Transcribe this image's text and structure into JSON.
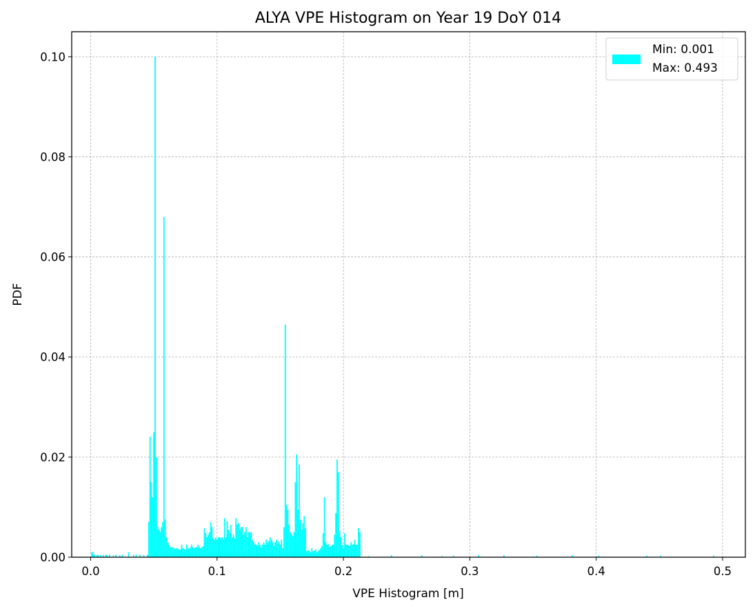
{
  "chart_data": {
    "type": "bar",
    "title": "ALYA VPE Histogram on Year 19 DoY 014",
    "xlabel": "VPE Histogram [m]",
    "ylabel": "PDF",
    "xlim": [
      -0.015,
      0.518
    ],
    "ylim": [
      0,
      0.105
    ],
    "xticks": [
      0.0,
      0.1,
      0.2,
      0.3,
      0.4,
      0.5
    ],
    "xtick_labels": [
      "0.0",
      "0.1",
      "0.2",
      "0.3",
      "0.4",
      "0.5"
    ],
    "yticks": [
      0.0,
      0.02,
      0.04,
      0.06,
      0.08,
      0.1
    ],
    "ytick_labels": [
      "0.00",
      "0.02",
      "0.04",
      "0.06",
      "0.08",
      "0.10"
    ],
    "grid": true,
    "legend_position": "top-right",
    "legend": [
      "Min: 0.001",
      "Max: 0.493"
    ],
    "bar_color": "#00ffff",
    "bin_width": 0.001,
    "x": [
      0.001,
      0.002,
      0.003,
      0.005,
      0.006,
      0.008,
      0.01,
      0.012,
      0.013,
      0.015,
      0.018,
      0.02,
      0.023,
      0.025,
      0.03,
      0.034,
      0.036,
      0.039,
      0.042,
      0.045,
      0.046,
      0.047,
      0.048,
      0.049,
      0.05,
      0.051,
      0.052,
      0.053,
      0.054,
      0.055,
      0.056,
      0.057,
      0.058,
      0.059,
      0.06,
      0.061,
      0.062,
      0.063,
      0.064,
      0.065,
      0.066,
      0.067,
      0.068,
      0.069,
      0.07,
      0.071,
      0.072,
      0.073,
      0.074,
      0.075,
      0.076,
      0.077,
      0.078,
      0.079,
      0.08,
      0.081,
      0.082,
      0.083,
      0.084,
      0.085,
      0.086,
      0.087,
      0.088,
      0.089,
      0.09,
      0.091,
      0.092,
      0.093,
      0.094,
      0.095,
      0.096,
      0.097,
      0.098,
      0.099,
      0.1,
      0.101,
      0.102,
      0.103,
      0.104,
      0.105,
      0.106,
      0.107,
      0.108,
      0.109,
      0.11,
      0.111,
      0.112,
      0.113,
      0.114,
      0.115,
      0.116,
      0.117,
      0.118,
      0.119,
      0.12,
      0.121,
      0.122,
      0.123,
      0.124,
      0.125,
      0.126,
      0.127,
      0.128,
      0.129,
      0.13,
      0.131,
      0.132,
      0.133,
      0.134,
      0.135,
      0.136,
      0.137,
      0.138,
      0.139,
      0.14,
      0.141,
      0.142,
      0.143,
      0.144,
      0.145,
      0.146,
      0.147,
      0.148,
      0.149,
      0.15,
      0.151,
      0.152,
      0.153,
      0.154,
      0.155,
      0.156,
      0.157,
      0.158,
      0.159,
      0.16,
      0.161,
      0.162,
      0.163,
      0.164,
      0.165,
      0.166,
      0.167,
      0.168,
      0.169,
      0.17,
      0.171,
      0.172,
      0.173,
      0.174,
      0.175,
      0.176,
      0.177,
      0.178,
      0.179,
      0.18,
      0.181,
      0.182,
      0.183,
      0.184,
      0.185,
      0.186,
      0.187,
      0.188,
      0.189,
      0.19,
      0.191,
      0.192,
      0.193,
      0.194,
      0.195,
      0.196,
      0.197,
      0.198,
      0.199,
      0.2,
      0.201,
      0.202,
      0.203,
      0.204,
      0.205,
      0.206,
      0.207,
      0.208,
      0.209,
      0.21,
      0.211,
      0.212,
      0.213,
      0.22,
      0.238,
      0.262,
      0.278,
      0.287,
      0.307,
      0.327,
      0.353,
      0.381,
      0.402,
      0.44,
      0.451,
      0.493
    ],
    "values": [
      0.0011,
      0.0009,
      0.0005,
      0.0005,
      0.0004,
      0.0004,
      0.0005,
      0.0005,
      0.0004,
      0.0005,
      0.0004,
      0.0005,
      0.0004,
      0.0005,
      0.001,
      0.0005,
      0.0005,
      0.0005,
      0.0004,
      0.0005,
      0.0071,
      0.0241,
      0.015,
      0.012,
      0.025,
      0.1,
      0.02,
      0.006,
      0.0055,
      0.005,
      0.006,
      0.007,
      0.068,
      0.0075,
      0.004,
      0.003,
      0.0025,
      0.002,
      0.002,
      0.002,
      0.0018,
      0.0015,
      0.0018,
      0.0017,
      0.0016,
      0.0015,
      0.0025,
      0.0018,
      0.0016,
      0.0015,
      0.0025,
      0.0018,
      0.0017,
      0.002,
      0.0025,
      0.002,
      0.0018,
      0.002,
      0.002,
      0.0025,
      0.002,
      0.0018,
      0.002,
      0.0022,
      0.0058,
      0.0048,
      0.004,
      0.0045,
      0.005,
      0.007,
      0.006,
      0.0038,
      0.0035,
      0.004,
      0.0035,
      0.004,
      0.004,
      0.0038,
      0.004,
      0.0035,
      0.0078,
      0.004,
      0.0072,
      0.0055,
      0.0048,
      0.0065,
      0.004,
      0.0045,
      0.0038,
      0.0078,
      0.0065,
      0.0068,
      0.0055,
      0.006,
      0.006,
      0.0045,
      0.005,
      0.006,
      0.004,
      0.005,
      0.005,
      0.005,
      0.0035,
      0.003,
      0.0025,
      0.0025,
      0.0022,
      0.003,
      0.0025,
      0.002,
      0.0025,
      0.003,
      0.0025,
      0.0035,
      0.0028,
      0.0032,
      0.004,
      0.0035,
      0.003,
      0.0022,
      0.003,
      0.0035,
      0.0028,
      0.0032,
      0.0025,
      0.0035,
      0.0018,
      0.006,
      0.0465,
      0.0105,
      0.0095,
      0.0065,
      0.005,
      0.0045,
      0.0042,
      0.005,
      0.015,
      0.0205,
      0.0095,
      0.0185,
      0.0075,
      0.0055,
      0.0068,
      0.0082,
      0.0058,
      0.0012,
      0.0015,
      0.0012,
      0.001,
      0.0018,
      0.0012,
      0.0013,
      0.0016,
      0.001,
      0.0012,
      0.0015,
      0.0018,
      0.0022,
      0.0048,
      0.012,
      0.003,
      0.0025,
      0.0026,
      0.002,
      0.0022,
      0.0025,
      0.0025,
      0.0045,
      0.0088,
      0.0195,
      0.017,
      0.0052,
      0.004,
      0.0025,
      0.0018,
      0.0048,
      0.0025,
      0.0025,
      0.0024,
      0.0022,
      0.003,
      0.0025,
      0.0026,
      0.0035,
      0.0025,
      0.0025,
      0.0058,
      0.005,
      0.0002,
      0.0004,
      0.0004,
      0.0002,
      0.0003,
      0.0004,
      0.0004,
      0.0003,
      0.0004,
      0.0003,
      0.0003,
      0.0003,
      0.0003
    ]
  }
}
